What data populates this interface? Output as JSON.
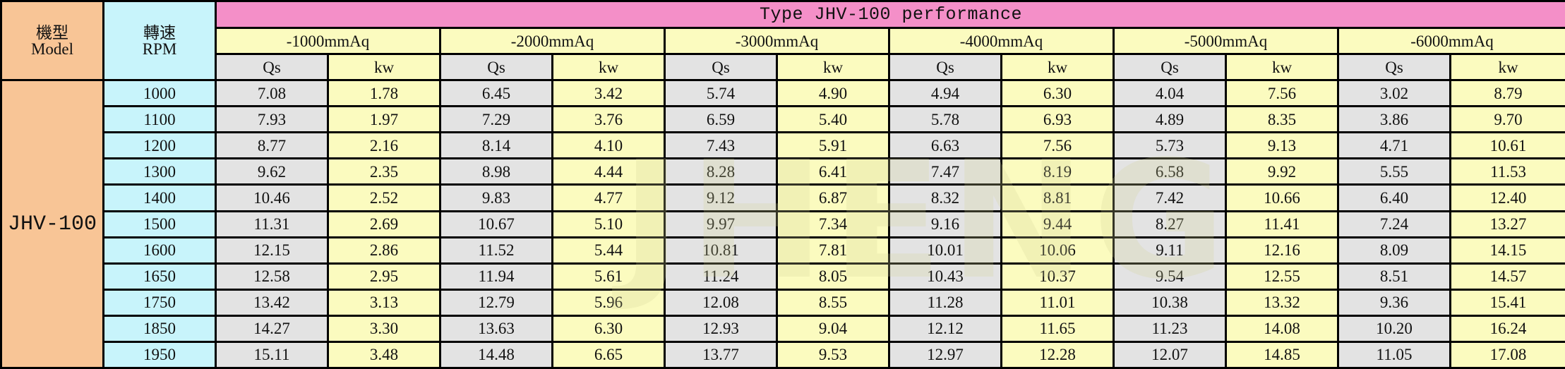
{
  "header": {
    "model_zh": "機型",
    "model_en": "Model",
    "rpm_zh": "轉速",
    "rpm_en": "RPM",
    "title": "Type JHV-100 performance",
    "groups": [
      "-1000mmAq",
      "-2000mmAq",
      "-3000mmAq",
      "-4000mmAq",
      "-5000mmAq",
      "-6000mmAq"
    ],
    "qs_label": "Qs",
    "kw_label": "kw"
  },
  "model": "JHV-100",
  "rows": [
    {
      "rpm": "1000",
      "cells": [
        "7.08",
        "1.78",
        "6.45",
        "3.42",
        "5.74",
        "4.90",
        "4.94",
        "6.30",
        "4.04",
        "7.56",
        "3.02",
        "8.79"
      ]
    },
    {
      "rpm": "1100",
      "cells": [
        "7.93",
        "1.97",
        "7.29",
        "3.76",
        "6.59",
        "5.40",
        "5.78",
        "6.93",
        "4.89",
        "8.35",
        "3.86",
        "9.70"
      ]
    },
    {
      "rpm": "1200",
      "cells": [
        "8.77",
        "2.16",
        "8.14",
        "4.10",
        "7.43",
        "5.91",
        "6.63",
        "7.56",
        "5.73",
        "9.13",
        "4.71",
        "10.61"
      ]
    },
    {
      "rpm": "1300",
      "cells": [
        "9.62",
        "2.35",
        "8.98",
        "4.44",
        "8.28",
        "6.41",
        "7.47",
        "8.19",
        "6.58",
        "9.92",
        "5.55",
        "11.53"
      ]
    },
    {
      "rpm": "1400",
      "cells": [
        "10.46",
        "2.52",
        "9.83",
        "4.77",
        "9.12",
        "6.87",
        "8.32",
        "8.81",
        "7.42",
        "10.66",
        "6.40",
        "12.40"
      ]
    },
    {
      "rpm": "1500",
      "cells": [
        "11.31",
        "2.69",
        "10.67",
        "5.10",
        "9.97",
        "7.34",
        "9.16",
        "9.44",
        "8.27",
        "11.41",
        "7.24",
        "13.27"
      ]
    },
    {
      "rpm": "1600",
      "cells": [
        "12.15",
        "2.86",
        "11.52",
        "5.44",
        "10.81",
        "7.81",
        "10.01",
        "10.06",
        "9.11",
        "12.16",
        "8.09",
        "14.15"
      ]
    },
    {
      "rpm": "1650",
      "cells": [
        "12.58",
        "2.95",
        "11.94",
        "5.61",
        "11.24",
        "8.05",
        "10.43",
        "10.37",
        "9.54",
        "12.55",
        "8.51",
        "14.57"
      ]
    },
    {
      "rpm": "1750",
      "cells": [
        "13.42",
        "3.13",
        "12.79",
        "5.96",
        "12.08",
        "8.55",
        "11.28",
        "11.01",
        "10.38",
        "13.32",
        "9.36",
        "15.41"
      ]
    },
    {
      "rpm": "1850",
      "cells": [
        "14.27",
        "3.30",
        "13.63",
        "6.30",
        "12.93",
        "9.04",
        "12.12",
        "11.65",
        "11.23",
        "14.08",
        "10.20",
        "16.24"
      ]
    },
    {
      "rpm": "1950",
      "cells": [
        "15.11",
        "3.48",
        "14.48",
        "6.65",
        "13.77",
        "9.53",
        "12.97",
        "12.28",
        "12.07",
        "14.85",
        "11.05",
        "17.08"
      ]
    }
  ]
}
